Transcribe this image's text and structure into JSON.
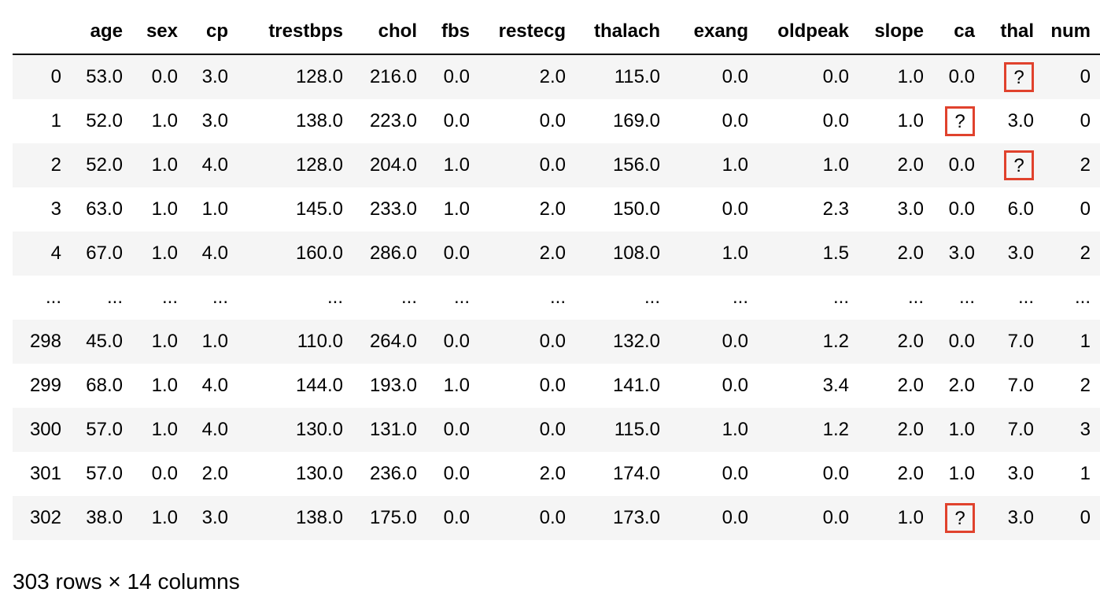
{
  "columns": [
    "",
    "age",
    "sex",
    "cp",
    "trestbps",
    "chol",
    "fbs",
    "restecg",
    "thalach",
    "exang",
    "oldpeak",
    "slope",
    "ca",
    "thal",
    "num"
  ],
  "rows": [
    [
      "0",
      "53.0",
      "0.0",
      "3.0",
      "128.0",
      "216.0",
      "0.0",
      "2.0",
      "115.0",
      "0.0",
      "0.0",
      "1.0",
      "0.0",
      "?",
      "0"
    ],
    [
      "1",
      "52.0",
      "1.0",
      "3.0",
      "138.0",
      "223.0",
      "0.0",
      "0.0",
      "169.0",
      "0.0",
      "0.0",
      "1.0",
      "?",
      "3.0",
      "0"
    ],
    [
      "2",
      "52.0",
      "1.0",
      "4.0",
      "128.0",
      "204.0",
      "1.0",
      "0.0",
      "156.0",
      "1.0",
      "1.0",
      "2.0",
      "0.0",
      "?",
      "2"
    ],
    [
      "3",
      "63.0",
      "1.0",
      "1.0",
      "145.0",
      "233.0",
      "1.0",
      "2.0",
      "150.0",
      "0.0",
      "2.3",
      "3.0",
      "0.0",
      "6.0",
      "0"
    ],
    [
      "4",
      "67.0",
      "1.0",
      "4.0",
      "160.0",
      "286.0",
      "0.0",
      "2.0",
      "108.0",
      "1.0",
      "1.5",
      "2.0",
      "3.0",
      "3.0",
      "2"
    ],
    [
      "...",
      "...",
      "...",
      "...",
      "...",
      "...",
      "...",
      "...",
      "...",
      "...",
      "...",
      "...",
      "...",
      "...",
      "..."
    ],
    [
      "298",
      "45.0",
      "1.0",
      "1.0",
      "110.0",
      "264.0",
      "0.0",
      "0.0",
      "132.0",
      "0.0",
      "1.2",
      "2.0",
      "0.0",
      "7.0",
      "1"
    ],
    [
      "299",
      "68.0",
      "1.0",
      "4.0",
      "144.0",
      "193.0",
      "1.0",
      "0.0",
      "141.0",
      "0.0",
      "3.4",
      "2.0",
      "2.0",
      "7.0",
      "2"
    ],
    [
      "300",
      "57.0",
      "1.0",
      "4.0",
      "130.0",
      "131.0",
      "0.0",
      "0.0",
      "115.0",
      "1.0",
      "1.2",
      "2.0",
      "1.0",
      "7.0",
      "3"
    ],
    [
      "301",
      "57.0",
      "0.0",
      "2.0",
      "130.0",
      "236.0",
      "0.0",
      "2.0",
      "174.0",
      "0.0",
      "0.0",
      "2.0",
      "1.0",
      "3.0",
      "1"
    ],
    [
      "302",
      "38.0",
      "1.0",
      "3.0",
      "138.0",
      "175.0",
      "0.0",
      "0.0",
      "173.0",
      "0.0",
      "0.0",
      "1.0",
      "?",
      "3.0",
      "0"
    ]
  ],
  "highlight_color": "#e0422d",
  "footer": "303 rows × 14 columns"
}
